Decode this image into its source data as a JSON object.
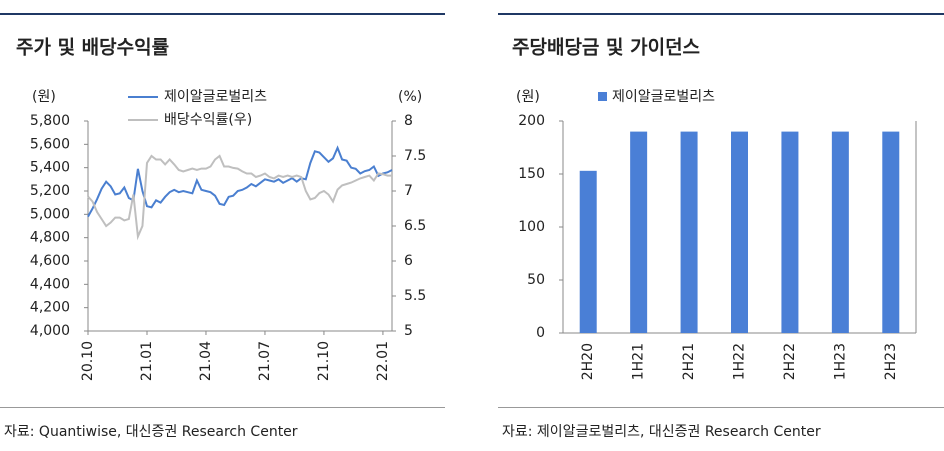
{
  "chart_data": [
    {
      "type": "line",
      "title": "주가 및 배당수익률",
      "y_unit": "(원)",
      "y2_unit": "(%)",
      "categories": [
        "20.10",
        null,
        null,
        null,
        null,
        null,
        null,
        null,
        null,
        null,
        null,
        null,
        null,
        "21.01",
        null,
        null,
        null,
        null,
        null,
        null,
        null,
        null,
        null,
        null,
        null,
        null,
        "21.04",
        null,
        null,
        null,
        null,
        null,
        null,
        null,
        null,
        null,
        null,
        null,
        null,
        "21.07",
        null,
        null,
        null,
        null,
        null,
        null,
        null,
        null,
        null,
        null,
        null,
        null,
        "21.10",
        null,
        null,
        null,
        null,
        null,
        null,
        null,
        null,
        null,
        null,
        null,
        null,
        "22.01",
        null,
        null
      ],
      "series": [
        {
          "name": "제이알글로벌리츠",
          "color": "#4a7fd0",
          "values": [
            4980,
            5050,
            5130,
            5220,
            5280,
            5240,
            5170,
            5180,
            5230,
            5140,
            5120,
            5390,
            5200,
            5070,
            5060,
            5120,
            5100,
            5150,
            5190,
            5210,
            5190,
            5200,
            5190,
            5180,
            5290,
            5210,
            5200,
            5190,
            5160,
            5090,
            5080,
            5150,
            5160,
            5200,
            5210,
            5230,
            5260,
            5240,
            5270,
            5300,
            5290,
            5280,
            5300,
            5270,
            5290,
            5310,
            5280,
            5310,
            5300,
            5440,
            5540,
            5530,
            5490,
            5450,
            5480,
            5570,
            5470,
            5460,
            5400,
            5390,
            5350,
            5370,
            5380,
            5410,
            5330,
            5350,
            5360,
            5380
          ]
        },
        {
          "name": "배당수익률(우)",
          "color": "#bfbfbf",
          "axis": "y2",
          "values": [
            6.92,
            6.85,
            6.7,
            6.6,
            6.5,
            6.55,
            6.62,
            6.62,
            6.58,
            6.6,
            6.95,
            6.35,
            6.5,
            7.4,
            7.5,
            7.45,
            7.45,
            7.38,
            7.45,
            7.38,
            7.3,
            7.28,
            7.3,
            7.32,
            7.3,
            7.32,
            7.32,
            7.35,
            7.45,
            7.5,
            7.35,
            7.35,
            7.33,
            7.32,
            7.28,
            7.25,
            7.25,
            7.2,
            7.22,
            7.25,
            7.2,
            7.18,
            7.22,
            7.2,
            7.22,
            7.2,
            7.22,
            7.2,
            7.0,
            6.88,
            6.9,
            6.97,
            7.0,
            6.95,
            6.85,
            7.02,
            7.08,
            7.1,
            7.12,
            7.15,
            7.18,
            7.2,
            7.22,
            7.15,
            7.25,
            7.24,
            7.22,
            7.22
          ]
        }
      ],
      "ylim": [
        4000,
        5800
      ],
      "yticks": [
        {
          "value": 4000,
          "label": "4,000"
        },
        {
          "value": 4200,
          "label": "4,200"
        },
        {
          "value": 4400,
          "label": "4,400"
        },
        {
          "value": 4600,
          "label": "4,600"
        },
        {
          "value": 4800,
          "label": "4,800"
        },
        {
          "value": 5000,
          "label": "5,000"
        },
        {
          "value": 5200,
          "label": "5,200"
        },
        {
          "value": 5400,
          "label": "5,400"
        },
        {
          "value": 5600,
          "label": "5,600"
        },
        {
          "value": 5800,
          "label": "5,800"
        }
      ],
      "y2lim": [
        5,
        8
      ],
      "y2ticks": [
        5,
        5.5,
        6,
        6.5,
        7,
        7.5,
        8
      ],
      "source": "자료: Quantiwise, 대신증권 Research Center"
    },
    {
      "type": "bar",
      "title": "주당배당금 및 가이던스",
      "y_unit": "(원)",
      "categories": [
        "2H20",
        "1H21",
        "2H21",
        "1H22",
        "2H22",
        "1H23",
        "2H23"
      ],
      "series": [
        {
          "name": "제이알글로벌리츠",
          "color": "#4a7fd6",
          "values": [
            153,
            190,
            190,
            190,
            190,
            190,
            190
          ]
        }
      ],
      "ylim": [
        0,
        200
      ],
      "yticks": [
        0,
        50,
        100,
        150,
        200
      ],
      "source": "자료: 제이알글로벌리츠, 대신증권 Research Center"
    }
  ]
}
